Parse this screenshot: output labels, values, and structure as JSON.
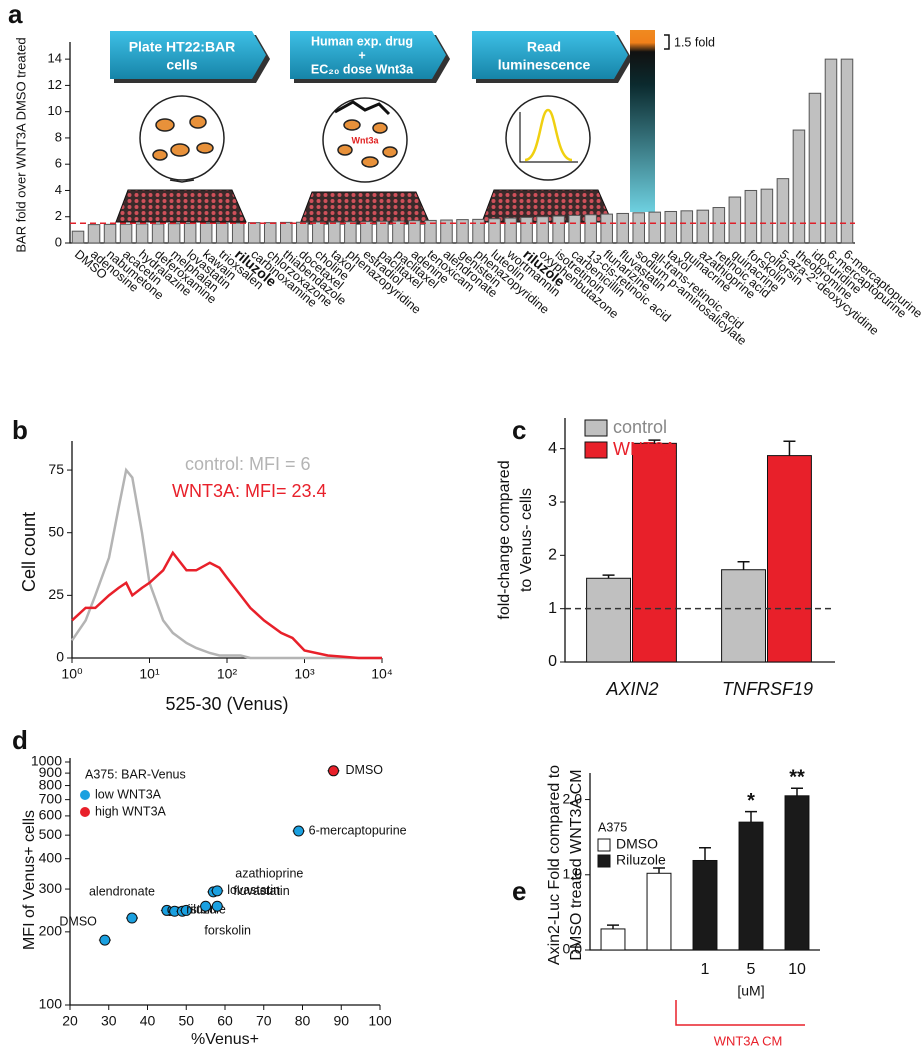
{
  "schematic": {
    "steps": [
      [
        "Plate HT22:BAR",
        "cells"
      ],
      [
        "Human exp. drug",
        "+",
        "EC₂₀ dose Wnt3a"
      ],
      [
        "Read",
        "luminescence"
      ]
    ],
    "inset_label": "Wnt3a",
    "scale_label": "1.5 fold"
  },
  "chart_data": [
    {
      "type": "bar",
      "panel": "a",
      "y_label": [
        "BAR fold over WNT3A DMSO treated"
      ],
      "categories": [
        "DMSO",
        "adenosine",
        "nabumetone",
        "acacetin",
        "hydralazine",
        "deferoxamine",
        "melphalan",
        "lovastatin",
        "kawain",
        "trioxsalen",
        "riluzole",
        "carbinoxamine",
        "chlorzoxazone",
        "thiabendazole",
        "docetaxel",
        "choline",
        "taxol",
        "phenazopyridine",
        "estradiol",
        "paclitaxel",
        "paclitaxel",
        "adenine",
        "tenoxicam",
        "alendronate",
        "genistein",
        "phenazopyridine",
        "luteolin",
        "wortmannin",
        "riluzole",
        "oxyphenbutazone",
        "isotretinoin",
        "carbenicillin",
        "13-cis-retinoic acid",
        "flunarizine",
        "fluvastatin",
        "sodium p-aminosalicylate",
        "all-trans-retinoic acid",
        "taxol",
        "quinacrine",
        "azathioprine",
        "retinoic acid",
        "quinacrine",
        "forskolin",
        "colforsin",
        "5-aza-2'-deoxycytidine",
        "theobromine",
        "idoxuridine",
        "6-mercaptopurine",
        "6-mercaptopurine"
      ],
      "values": [
        0.9,
        1.4,
        1.42,
        1.43,
        1.45,
        1.45,
        1.47,
        1.48,
        1.5,
        1.5,
        1.52,
        1.55,
        1.55,
        1.57,
        1.58,
        1.6,
        1.6,
        1.62,
        1.63,
        1.65,
        1.67,
        1.7,
        1.72,
        1.75,
        1.78,
        1.8,
        1.85,
        1.9,
        1.95,
        2.0,
        2.05,
        2.1,
        2.15,
        2.2,
        2.25,
        2.3,
        2.35,
        2.4,
        2.45,
        2.5,
        2.7,
        3.5,
        4.0,
        4.1,
        4.9,
        8.6,
        11.4,
        14.0,
        14.0
      ],
      "bold_categories": [
        10,
        28
      ],
      "color": "#c0c0c0",
      "ylim": [
        0,
        15
      ],
      "yticks": [
        0,
        2,
        4,
        6,
        8,
        10,
        12,
        14
      ],
      "threshold": 1.5,
      "threshold_color": "#e0202a"
    },
    {
      "type": "line",
      "panel": "b",
      "x_label": "525-30 (Venus)",
      "y_label": [
        "Cell count"
      ],
      "x": [
        1,
        1.5,
        2,
        3,
        4,
        5,
        6,
        8,
        10,
        15,
        20,
        30,
        40,
        60,
        80,
        100,
        150,
        200,
        300,
        500,
        700,
        1000,
        2000,
        5000,
        10000
      ],
      "series": [
        {
          "name": "control:   MFI = 6",
          "color": "#b4b4b4",
          "values": [
            7,
            15,
            25,
            40,
            60,
            75,
            72,
            50,
            30,
            15,
            10,
            6,
            4,
            2,
            1,
            1,
            1,
            0,
            0,
            0,
            0,
            0,
            0,
            0,
            0
          ]
        },
        {
          "name": "WNT3A:  MFI= 23.4",
          "color": "#e8202a",
          "values": [
            15,
            20,
            20,
            25,
            28,
            30,
            25,
            28,
            30,
            35,
            42,
            35,
            35,
            38,
            36,
            32,
            25,
            20,
            15,
            10,
            8,
            3,
            1,
            0,
            0
          ]
        }
      ],
      "xlog": true,
      "xlim": [
        1,
        10000
      ],
      "xticks": [
        {
          "value": 1,
          "label": "10⁰"
        },
        {
          "value": 10,
          "label": "10¹"
        },
        {
          "value": 100,
          "label": "10²"
        },
        {
          "value": 1000,
          "label": "10³"
        },
        {
          "value": 10000,
          "label": "10⁴"
        }
      ],
      "ylim": [
        0,
        85
      ],
      "yticks": [
        0,
        25,
        50,
        75
      ]
    },
    {
      "type": "bar",
      "panel": "c",
      "y_label": [
        "fold-change compared",
        "to Venus- cells"
      ],
      "categories": [
        "AXIN2",
        "TNFRSF19"
      ],
      "series": [
        {
          "name": "control",
          "color": "#c0c0c0",
          "values": [
            1.57,
            1.73
          ],
          "errors": [
            0.06,
            0.15
          ]
        },
        {
          "name": "WNT3A",
          "color": "#e8202a",
          "values": [
            4.1,
            3.87
          ],
          "errors": [
            0.06,
            0.27
          ]
        }
      ],
      "ylim": [
        0,
        4.5
      ],
      "yticks": [
        0,
        1,
        2,
        3,
        4
      ],
      "threshold": 1,
      "threshold_color": "#333333"
    },
    {
      "type": "scatter",
      "panel": "d",
      "subtitle": "A375: BAR-Venus",
      "x_label": "%Venus+",
      "y_label": [
        "MFI of Venus+ cells"
      ],
      "series": [
        {
          "name": "low WNT3A",
          "color": "#1aa0e0",
          "x": [
            29,
            36,
            45,
            47,
            49,
            50,
            55,
            57,
            58,
            58,
            79
          ],
          "values": [
            185,
            228,
            245,
            243,
            243,
            245,
            255,
            292,
            255,
            295,
            520
          ],
          "point_labels": [
            "DMSO",
            "alendronate",
            "genistein",
            null,
            "forskolin",
            "riluzole",
            null,
            "fluvastatin",
            "azathioprine",
            "lovastatin",
            "6-mercaptopurine"
          ]
        },
        {
          "name": "high WNT3A",
          "color": "#e8202a",
          "x": [
            88
          ],
          "values": [
            920
          ],
          "point_labels": [
            "DMSO"
          ]
        }
      ],
      "xlim": [
        20,
        100
      ],
      "xticks": [
        20,
        30,
        40,
        50,
        60,
        70,
        80,
        90,
        100
      ],
      "ylog": true,
      "ylim": [
        100,
        1000
      ],
      "yticks": [
        100,
        200,
        300,
        400,
        500,
        600,
        700,
        800,
        900,
        1000
      ]
    },
    {
      "type": "bar",
      "panel": "e",
      "subtitle": "A375",
      "x_label": "[uM]",
      "bracket_label": "WNT3A CM",
      "y_label": [
        "Axin2-Luc Fold compared to",
        "DMSO treated  WNT3A CM"
      ],
      "categories": [
        null,
        null,
        "1",
        "5",
        "10"
      ],
      "series": [
        {
          "name": "DMSO",
          "color": "#ffffff",
          "values": [
            0.28,
            1.02,
            null,
            null,
            null
          ],
          "errors": [
            0.05,
            0.07,
            null,
            null,
            null
          ]
        },
        {
          "name": "Riluzole",
          "color": "#1a1a1a",
          "values": [
            null,
            null,
            1.19,
            1.7,
            2.05
          ],
          "errors": [
            null,
            null,
            0.17,
            0.14,
            0.1
          ]
        }
      ],
      "significance": [
        null,
        null,
        null,
        "*",
        "**"
      ],
      "ylim": [
        0,
        2.3
      ],
      "yticks": [
        {
          "value": 0,
          "label": "0.0"
        },
        {
          "value": 1,
          "label": "1.0"
        },
        {
          "value": 2,
          "label": "2.0"
        }
      ]
    }
  ]
}
